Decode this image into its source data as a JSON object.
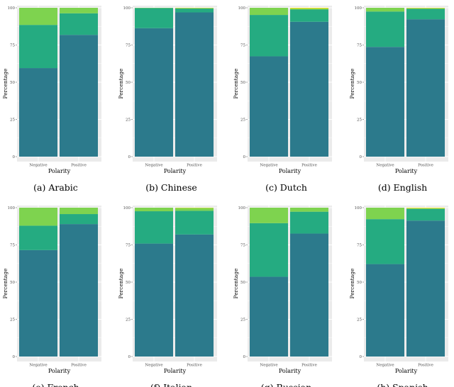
{
  "colors": {
    "panel_bg": "#ebebeb",
    "grid": "#ffffff",
    "segment_bottom": "#2c7a8c",
    "segment_middle": "#25ab81",
    "segment_top": "#7ed34f",
    "segment_tiny": "#f5e21f",
    "tick_text": "#4d4d4d",
    "axis_title": "#000000",
    "caption": "#000000"
  },
  "chart_data": [
    {
      "type": "bar",
      "stacked": true,
      "caption": "(a)  Arabic",
      "xlabel": "Polarity",
      "ylabel": "Percentage",
      "categories": [
        "Negative",
        "Positive"
      ],
      "ylim": [
        0,
        100
      ],
      "yticks": [
        0,
        25,
        50,
        75,
        100
      ],
      "series": [
        {
          "values": [
            59.5,
            81.8
          ]
        },
        {
          "values": [
            29.0,
            14.5
          ]
        },
        {
          "values": [
            11.5,
            3.7
          ]
        },
        {
          "values": [
            0.0,
            0.0
          ]
        }
      ],
      "grid": true
    },
    {
      "type": "bar",
      "stacked": true,
      "caption": "(b)  Chinese",
      "xlabel": "Polarity",
      "ylabel": "Percentage",
      "categories": [
        "Negative",
        "Positive"
      ],
      "ylim": [
        0,
        100
      ],
      "yticks": [
        0,
        25,
        50,
        75,
        100
      ],
      "series": [
        {
          "values": [
            86.3,
            96.9
          ]
        },
        {
          "values": [
            13.5,
            2.6
          ]
        },
        {
          "values": [
            0.2,
            0.3
          ]
        },
        {
          "values": [
            0.0,
            0.2
          ]
        }
      ],
      "grid": true
    },
    {
      "type": "bar",
      "stacked": true,
      "caption": "(c)  Dutch",
      "xlabel": "Polarity",
      "ylabel": "Percentage",
      "categories": [
        "Negative",
        "Positive"
      ],
      "ylim": [
        0,
        100
      ],
      "yticks": [
        0,
        25,
        50,
        75,
        100
      ],
      "series": [
        {
          "values": [
            67.4,
            90.6
          ]
        },
        {
          "values": [
            27.8,
            8.2
          ]
        },
        {
          "values": [
            4.8,
            0.7
          ]
        },
        {
          "values": [
            0.0,
            0.5
          ]
        }
      ],
      "grid": true
    },
    {
      "type": "bar",
      "stacked": true,
      "caption": "(d)  English",
      "xlabel": "Polarity",
      "ylabel": "Percentage",
      "categories": [
        "Negative",
        "Positive"
      ],
      "ylim": [
        0,
        100
      ],
      "yticks": [
        0,
        25,
        50,
        75,
        100
      ],
      "series": [
        {
          "values": [
            73.7,
            92.3
          ]
        },
        {
          "values": [
            23.8,
            7.0
          ]
        },
        {
          "values": [
            2.5,
            0.4
          ]
        },
        {
          "values": [
            0.0,
            0.3
          ]
        }
      ],
      "grid": true
    },
    {
      "type": "bar",
      "stacked": true,
      "caption": "(e)  French",
      "xlabel": "Polarity",
      "ylabel": "Percentage",
      "categories": [
        "Negative",
        "Positive"
      ],
      "ylim": [
        0,
        100
      ],
      "yticks": [
        0,
        25,
        50,
        75,
        100
      ],
      "series": [
        {
          "values": [
            71.5,
            89.0
          ]
        },
        {
          "values": [
            16.4,
            6.7
          ]
        },
        {
          "values": [
            12.1,
            4.3
          ]
        },
        {
          "values": [
            0.0,
            0.0
          ]
        }
      ],
      "grid": true
    },
    {
      "type": "bar",
      "stacked": true,
      "caption": "(f)  Italian",
      "xlabel": "Polarity",
      "ylabel": "Percentage",
      "categories": [
        "Negative",
        "Positive"
      ],
      "ylim": [
        0,
        100
      ],
      "yticks": [
        0,
        25,
        50,
        75,
        100
      ],
      "series": [
        {
          "values": [
            75.9,
            82.0
          ]
        },
        {
          "values": [
            21.7,
            15.9
          ]
        },
        {
          "values": [
            2.4,
            1.9
          ]
        },
        {
          "values": [
            0.0,
            0.2
          ]
        }
      ],
      "grid": true
    },
    {
      "type": "bar",
      "stacked": true,
      "caption": "(g)  Russian",
      "xlabel": "Polarity",
      "ylabel": "Percentage",
      "categories": [
        "Negative",
        "Positive"
      ],
      "ylim": [
        0,
        100
      ],
      "yticks": [
        0,
        25,
        50,
        75,
        100
      ],
      "series": [
        {
          "values": [
            53.6,
            82.6
          ]
        },
        {
          "values": [
            36.0,
            14.7
          ]
        },
        {
          "values": [
            10.4,
            2.7
          ]
        },
        {
          "values": [
            0.0,
            0.0
          ]
        }
      ],
      "grid": true
    },
    {
      "type": "bar",
      "stacked": true,
      "caption": "(h)  Spanish",
      "xlabel": "Polarity",
      "ylabel": "Percentage",
      "categories": [
        "Negative",
        "Positive"
      ],
      "ylim": [
        0,
        100
      ],
      "yticks": [
        0,
        25,
        50,
        75,
        100
      ],
      "series": [
        {
          "values": [
            62.1,
            91.3
          ]
        },
        {
          "values": [
            30.2,
            7.9
          ]
        },
        {
          "values": [
            7.7,
            0.4
          ]
        },
        {
          "values": [
            0.0,
            0.4
          ]
        }
      ],
      "grid": true
    }
  ]
}
